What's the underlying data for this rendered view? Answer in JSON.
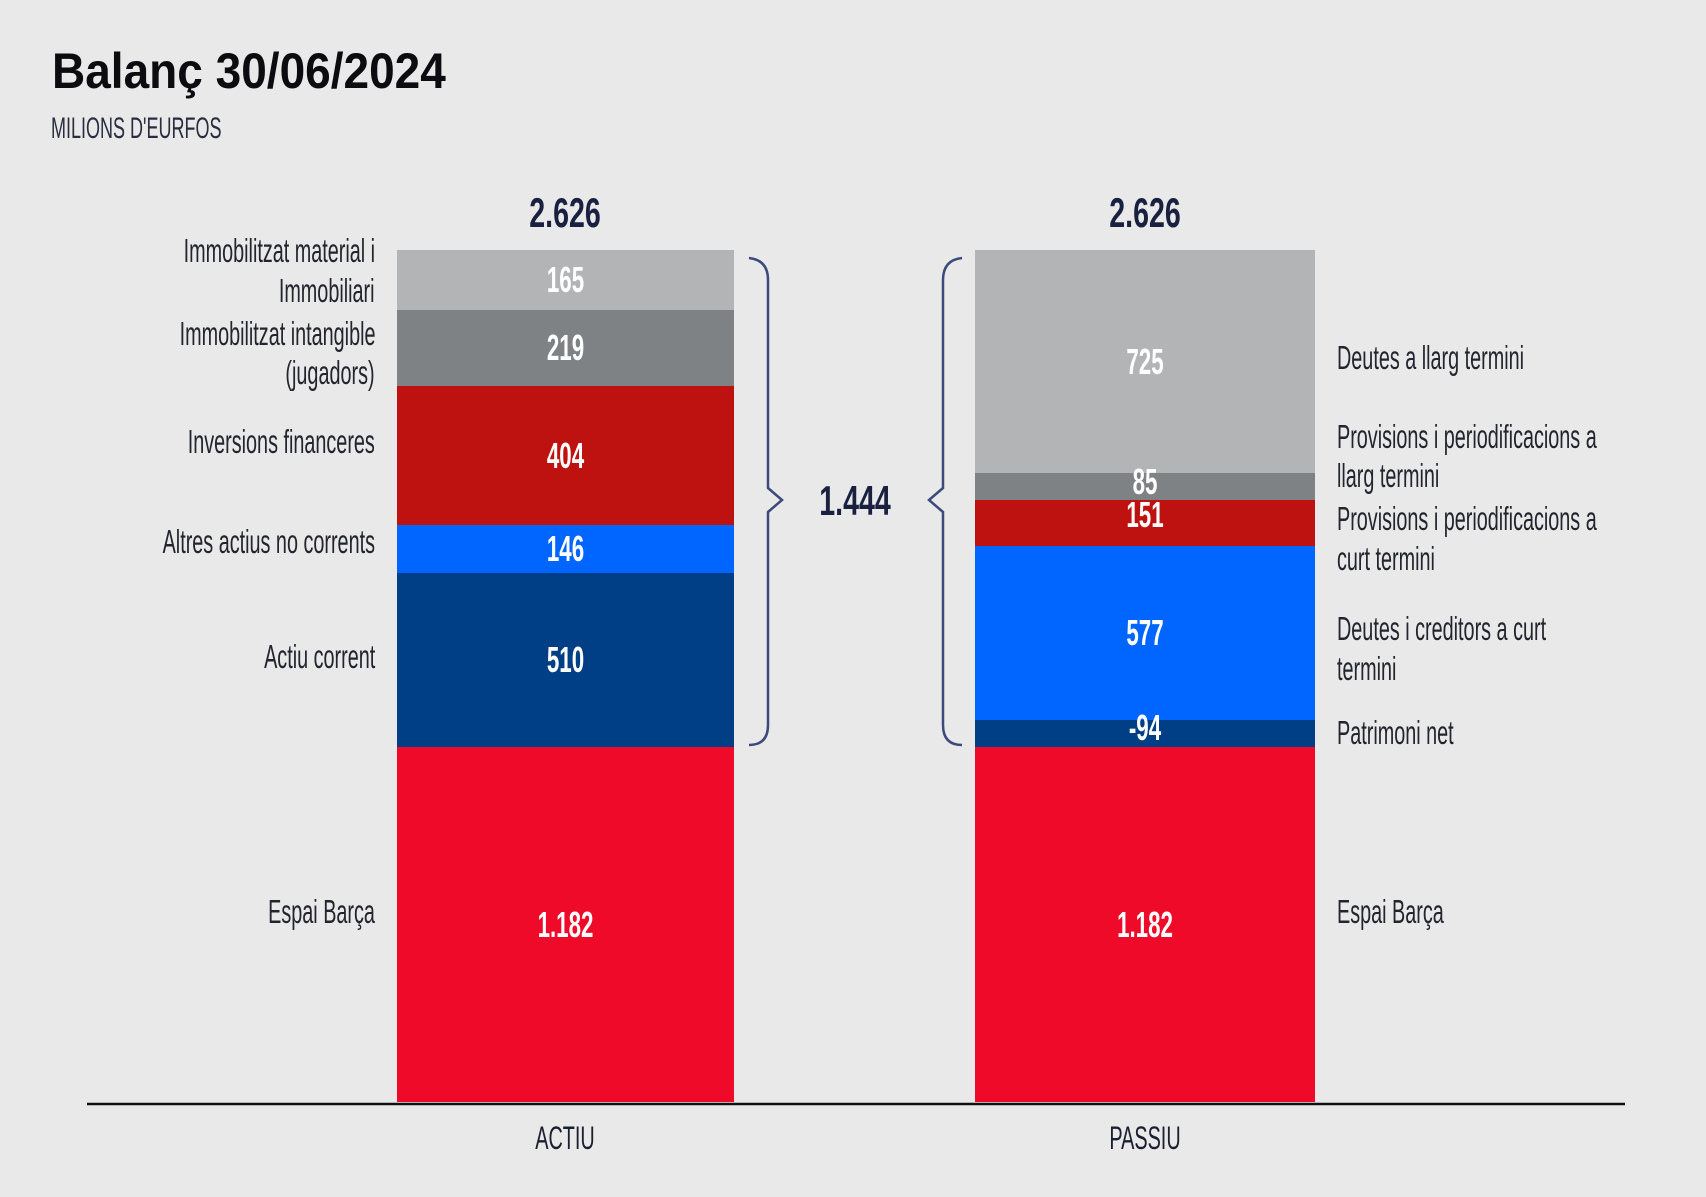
{
  "chart_data": {
    "type": "bar",
    "stacked": true,
    "title": "Balanç 30/06/2024",
    "subtitle": "MILIONS D'EURFOS",
    "categories": [
      "ACTIU",
      "PASSIU"
    ],
    "totals": [
      "2.626",
      "2.626"
    ],
    "bracket_value": "1.444",
    "stacks": [
      {
        "category": "ACTIU",
        "segments": [
          {
            "label_lines": [
              "Immobilitzat material i",
              "Immobiliari"
            ],
            "value": 165,
            "display": "165",
            "color": "#b2b4b6"
          },
          {
            "label_lines": [
              "Immobilitzat intangible",
              "(jugadors)"
            ],
            "value": 219,
            "display": "219",
            "color": "#7f8284"
          },
          {
            "label_lines": [
              "Inversions financeres"
            ],
            "value": 404,
            "display": "404",
            "color": "#bd1210"
          },
          {
            "label_lines": [
              "Altres actius no corrents"
            ],
            "value": 146,
            "display": "146",
            "color": "#0066ff"
          },
          {
            "label_lines": [
              "Actiu corrent"
            ],
            "value": 510,
            "display": "510",
            "color": "#003e85"
          },
          {
            "label_lines": [
              "Espai Barça"
            ],
            "value": 1182,
            "display": "1.182",
            "color": "#ef0a2a"
          }
        ]
      },
      {
        "category": "PASSIU",
        "segments": [
          {
            "label_lines": [
              "Deutes a llarg termini"
            ],
            "value": 725,
            "display": "725",
            "color": "#b2b4b6"
          },
          {
            "label_lines": [
              "Provisions i periodificacions a",
              "llarg termini"
            ],
            "value": 85,
            "display": "85",
            "color": "#7f8284"
          },
          {
            "label_lines": [
              "Provisions i periodificacions a",
              "curt termini"
            ],
            "value": 151,
            "display": "151",
            "color": "#bd1210"
          },
          {
            "label_lines": [
              "Deutes i creditors a curt",
              "termini"
            ],
            "value": 577,
            "display": "577",
            "color": "#0066ff"
          },
          {
            "label_lines": [
              "Patrimoni net"
            ],
            "value": -94,
            "display": "-94",
            "color": "#003e85"
          },
          {
            "label_lines": [
              "Espai Barça"
            ],
            "value": 1182,
            "display": "1.182",
            "color": "#ef0a2a"
          }
        ]
      }
    ],
    "legend": "none",
    "grid": false
  }
}
